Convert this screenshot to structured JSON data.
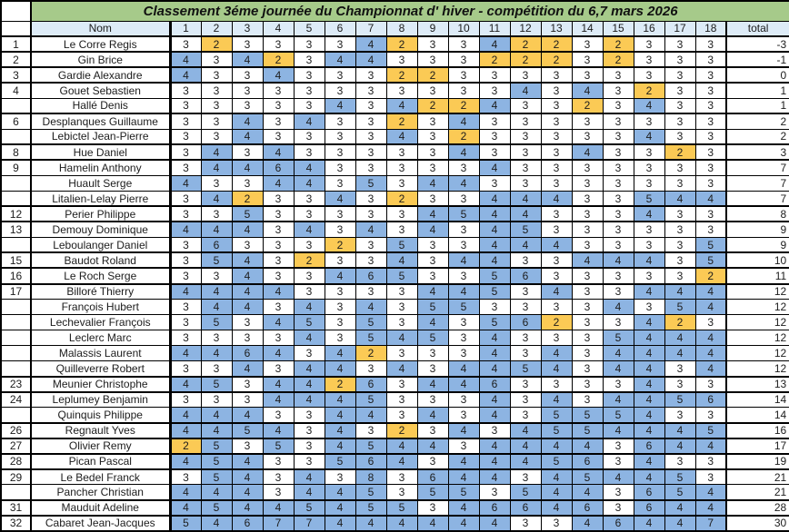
{
  "title": "Classement  3éme journée du Championnat d' hiver -  compétition du 6,7 mars 2026",
  "columns": {
    "name_header": "Nom",
    "holes": [
      "1",
      "2",
      "3",
      "4",
      "5",
      "6",
      "7",
      "8",
      "9",
      "10",
      "11",
      "12",
      "13",
      "14",
      "15",
      "16",
      "17",
      "18"
    ],
    "total_header": "total"
  },
  "palette": {
    "title_bg": "#A6CA8A",
    "header_bg": "#DDEBF7",
    "blue_cell": "#8DB4E2",
    "orange_cell": "#FBCA55",
    "border": "#000000"
  },
  "rows": [
    {
      "rank": "1",
      "name": "Le Corre Regis",
      "scores": [
        3,
        2,
        3,
        3,
        3,
        3,
        4,
        2,
        3,
        3,
        4,
        2,
        2,
        3,
        2,
        3,
        3,
        3
      ],
      "total": "-3"
    },
    {
      "rank": "2",
      "name": "Gin Brice",
      "scores": [
        4,
        3,
        4,
        2,
        3,
        4,
        4,
        3,
        3,
        3,
        2,
        2,
        2,
        3,
        2,
        3,
        3,
        3
      ],
      "total": "-1"
    },
    {
      "rank": "3",
      "name": "Gardie Alexandre",
      "scores": [
        4,
        3,
        3,
        4,
        3,
        3,
        3,
        2,
        2,
        3,
        3,
        3,
        3,
        3,
        3,
        3,
        3,
        3
      ],
      "total": "0"
    },
    {
      "rank": "4",
      "name": "Gouet Sebastien",
      "scores": [
        3,
        3,
        3,
        3,
        3,
        3,
        3,
        3,
        3,
        3,
        3,
        4,
        3,
        4,
        3,
        2,
        3,
        3
      ],
      "total": "1"
    },
    {
      "rank": "",
      "name": "Hallé Denis",
      "scores": [
        3,
        3,
        3,
        3,
        3,
        4,
        3,
        4,
        2,
        2,
        4,
        3,
        3,
        2,
        3,
        4,
        3,
        3
      ],
      "total": "1"
    },
    {
      "rank": "6",
      "name": "Desplanques Guillaume",
      "scores": [
        3,
        3,
        4,
        3,
        4,
        3,
        3,
        2,
        3,
        4,
        3,
        3,
        3,
        3,
        3,
        3,
        3,
        3
      ],
      "total": "2"
    },
    {
      "rank": "",
      "name": "Lebictel Jean-Pierre",
      "scores": [
        3,
        3,
        4,
        3,
        3,
        3,
        3,
        4,
        3,
        2,
        3,
        3,
        3,
        3,
        3,
        4,
        3,
        3
      ],
      "total": "2"
    },
    {
      "rank": "8",
      "name": "Hue Daniel",
      "scores": [
        3,
        4,
        3,
        4,
        3,
        3,
        3,
        3,
        3,
        4,
        3,
        3,
        3,
        4,
        3,
        3,
        2,
        3
      ],
      "total": "3"
    },
    {
      "rank": "9",
      "name": "Hamelin Anthony",
      "scores": [
        3,
        4,
        4,
        6,
        4,
        3,
        3,
        3,
        3,
        3,
        4,
        3,
        3,
        3,
        3,
        3,
        3,
        3
      ],
      "total": "7"
    },
    {
      "rank": "",
      "name": "Huault Serge",
      "scores": [
        4,
        3,
        3,
        4,
        4,
        3,
        5,
        3,
        4,
        4,
        3,
        3,
        3,
        3,
        3,
        3,
        3,
        3
      ],
      "total": "7"
    },
    {
      "rank": "",
      "name": "Litalien-Lelay Pierre",
      "scores": [
        3,
        4,
        2,
        3,
        3,
        4,
        3,
        2,
        3,
        3,
        4,
        4,
        4,
        3,
        3,
        5,
        4,
        4
      ],
      "total": "7"
    },
    {
      "rank": "12",
      "name": "Perier Philippe",
      "scores": [
        3,
        3,
        5,
        3,
        3,
        3,
        3,
        3,
        4,
        5,
        4,
        4,
        3,
        3,
        3,
        4,
        3,
        3
      ],
      "total": "8"
    },
    {
      "rank": "13",
      "name": "Demouy Dominique",
      "scores": [
        4,
        4,
        4,
        3,
        4,
        3,
        4,
        3,
        4,
        3,
        4,
        5,
        3,
        3,
        3,
        3,
        3,
        3
      ],
      "total": "9"
    },
    {
      "rank": "",
      "name": "Leboulanger Daniel",
      "scores": [
        3,
        6,
        3,
        3,
        3,
        2,
        3,
        5,
        3,
        3,
        4,
        4,
        4,
        3,
        3,
        3,
        3,
        5
      ],
      "total": "9"
    },
    {
      "rank": "15",
      "name": "Baudot Roland",
      "scores": [
        3,
        5,
        4,
        3,
        2,
        3,
        3,
        4,
        3,
        4,
        4,
        3,
        3,
        4,
        4,
        4,
        3,
        5
      ],
      "total": "10"
    },
    {
      "rank": "16",
      "name": "Le Roch Serge",
      "scores": [
        3,
        3,
        4,
        3,
        3,
        4,
        6,
        5,
        3,
        3,
        5,
        6,
        3,
        3,
        3,
        3,
        3,
        2
      ],
      "total": "11"
    },
    {
      "rank": "17",
      "name": "Billoré Thierry",
      "scores": [
        4,
        4,
        4,
        4,
        3,
        3,
        3,
        3,
        4,
        4,
        5,
        3,
        4,
        3,
        3,
        4,
        4,
        4
      ],
      "total": "12"
    },
    {
      "rank": "",
      "name": "François Hubert",
      "scores": [
        3,
        4,
        4,
        3,
        4,
        3,
        4,
        3,
        5,
        5,
        3,
        3,
        3,
        3,
        4,
        3,
        5,
        4
      ],
      "total": "12"
    },
    {
      "rank": "",
      "name": "Lechevalier François",
      "scores": [
        3,
        5,
        3,
        4,
        5,
        3,
        5,
        3,
        4,
        3,
        5,
        6,
        2,
        3,
        3,
        4,
        2,
        3
      ],
      "total": "12"
    },
    {
      "rank": "",
      "name": "Leclerc Marc",
      "scores": [
        3,
        3,
        3,
        3,
        4,
        3,
        5,
        4,
        5,
        3,
        4,
        3,
        3,
        3,
        5,
        4,
        4,
        4
      ],
      "total": "12"
    },
    {
      "rank": "",
      "name": "Malassis Laurent",
      "scores": [
        4,
        4,
        6,
        4,
        3,
        4,
        2,
        3,
        3,
        3,
        4,
        3,
        4,
        3,
        4,
        4,
        4,
        4
      ],
      "total": "12"
    },
    {
      "rank": "",
      "name": "Quilleverre Robert",
      "scores": [
        3,
        3,
        4,
        3,
        4,
        4,
        3,
        4,
        3,
        4,
        4,
        5,
        4,
        3,
        4,
        4,
        3,
        4
      ],
      "total": "12"
    },
    {
      "rank": "23",
      "name": "Meunier Christophe",
      "scores": [
        4,
        5,
        3,
        4,
        4,
        2,
        6,
        3,
        4,
        4,
        6,
        3,
        3,
        3,
        3,
        4,
        3,
        3
      ],
      "total": "13"
    },
    {
      "rank": "24",
      "name": "Leplumey Benjamin",
      "scores": [
        3,
        3,
        3,
        4,
        4,
        4,
        5,
        3,
        3,
        3,
        4,
        3,
        4,
        3,
        4,
        4,
        5,
        6
      ],
      "total": "14"
    },
    {
      "rank": "",
      "name": "Quinquis Philippe",
      "scores": [
        4,
        4,
        4,
        3,
        3,
        4,
        4,
        3,
        4,
        3,
        4,
        3,
        5,
        5,
        5,
        4,
        3,
        3
      ],
      "total": "14"
    },
    {
      "rank": "26",
      "name": "Regnault Yves",
      "scores": [
        4,
        4,
        5,
        4,
        3,
        4,
        3,
        2,
        3,
        4,
        3,
        4,
        5,
        5,
        4,
        4,
        4,
        5
      ],
      "total": "16"
    },
    {
      "rank": "27",
      "name": "Olivier Remy",
      "scores": [
        2,
        5,
        3,
        5,
        3,
        4,
        5,
        4,
        4,
        3,
        4,
        4,
        4,
        4,
        3,
        6,
        4,
        4
      ],
      "total": "17"
    },
    {
      "rank": "28",
      "name": "Pican Pascal",
      "scores": [
        4,
        5,
        4,
        3,
        3,
        5,
        6,
        4,
        3,
        4,
        4,
        4,
        5,
        6,
        3,
        4,
        3,
        3
      ],
      "total": "19"
    },
    {
      "rank": "29",
      "name": "Le Bedel Franck",
      "scores": [
        3,
        5,
        4,
        3,
        4,
        3,
        8,
        3,
        6,
        4,
        4,
        3,
        4,
        5,
        4,
        4,
        5,
        3
      ],
      "total": "21"
    },
    {
      "rank": "",
      "name": "Pancher Christian",
      "scores": [
        4,
        4,
        4,
        3,
        4,
        4,
        5,
        3,
        5,
        5,
        3,
        5,
        4,
        4,
        3,
        6,
        5,
        4
      ],
      "total": "21"
    },
    {
      "rank": "31",
      "name": "Mauduit Adeline",
      "scores": [
        4,
        5,
        4,
        4,
        5,
        4,
        5,
        5,
        3,
        4,
        6,
        6,
        4,
        6,
        3,
        6,
        4,
        4
      ],
      "total": "28"
    },
    {
      "rank": "32",
      "name": "Cabaret Jean-Jacques",
      "scores": [
        5,
        4,
        6,
        7,
        7,
        4,
        4,
        4,
        4,
        4,
        4,
        3,
        3,
        4,
        6,
        4,
        4,
        7
      ],
      "total": "30"
    }
  ]
}
